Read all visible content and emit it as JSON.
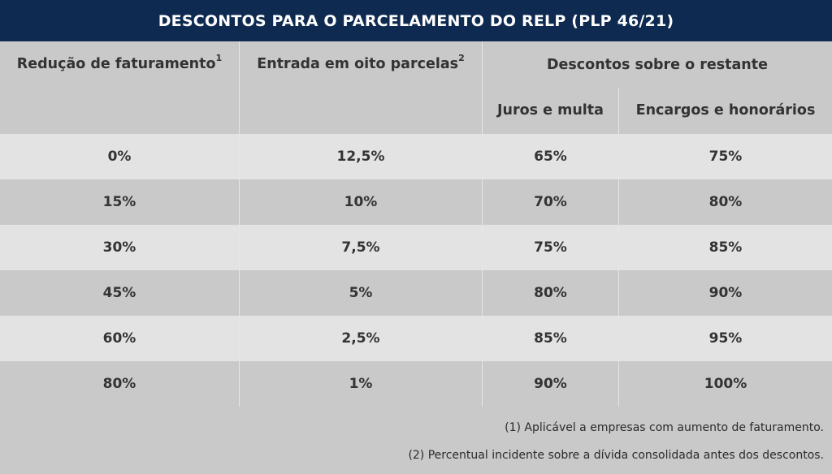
{
  "title": "DESCONTOS PARA O PARCELAMENTO DO RELP (PLP 46/21)",
  "headers": {
    "reducao": "Redução de faturamento",
    "reducao_sup": "1",
    "entrada": "Entrada em oito parcelas",
    "entrada_sup": "2",
    "descontos": "Descontos sobre o restante",
    "juros": "Juros e multa",
    "encargos": "Encargos e honorários"
  },
  "rows": [
    [
      "0%",
      "12,5%",
      "65%",
      "75%"
    ],
    [
      "15%",
      "10%",
      "70%",
      "80%"
    ],
    [
      "30%",
      "7,5%",
      "75%",
      "85%"
    ],
    [
      "45%",
      "5%",
      "80%",
      "90%"
    ],
    [
      "60%",
      "2,5%",
      "85%",
      "95%"
    ],
    [
      "80%",
      "1%",
      "90%",
      "100%"
    ]
  ],
  "notes": [
    "(1) Aplicável a empresas com aumento de faturamento.",
    "(2) Percentual incidente sobre a dívida consolidada antes dos descontos."
  ],
  "colors": {
    "banner": "#0e2a50",
    "row_light": "#e3e3e3",
    "row_dark": "#c9c9c9"
  }
}
